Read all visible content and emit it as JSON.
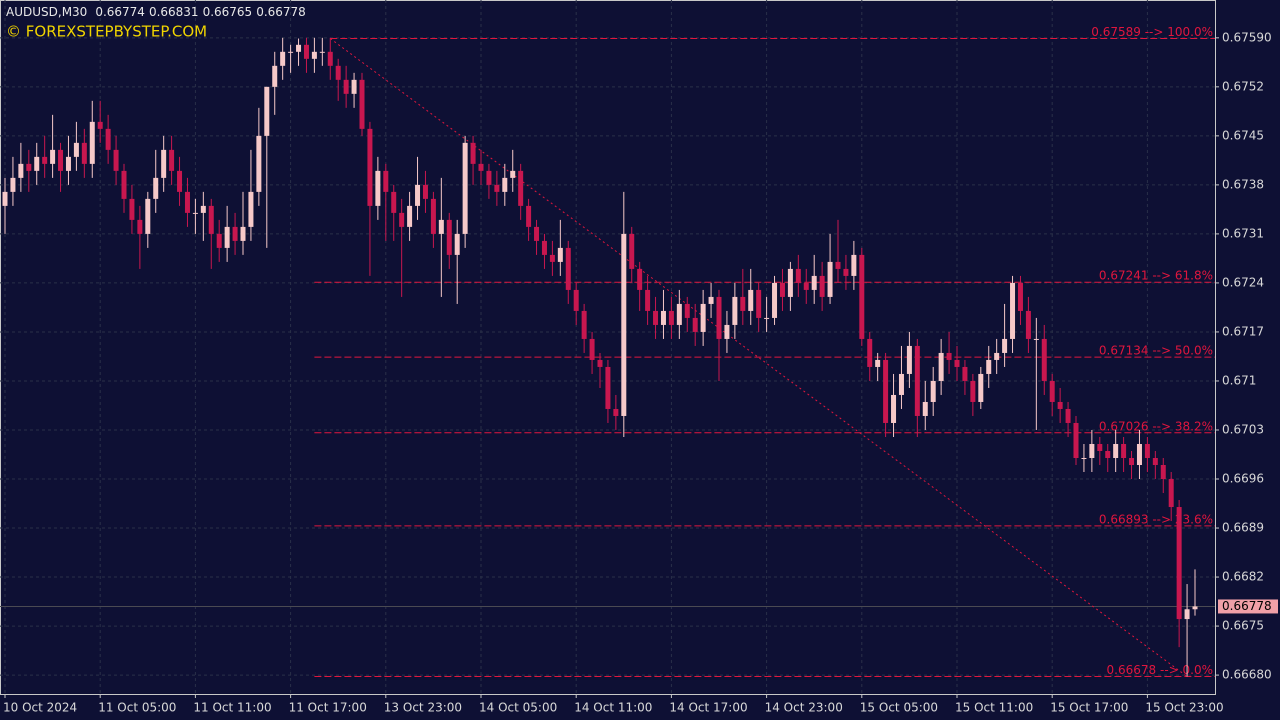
{
  "chart_data": {
    "type": "candlestick",
    "symbol": "AUDUSD,M30",
    "header_values": [
      0.66774,
      0.66831,
      0.66765,
      0.66778
    ],
    "watermark": "© FOREXSTEPBYSTEP.COM",
    "bid": 0.66778,
    "colors": {
      "up": "#f6c9c9",
      "down": "#c8174f",
      "fib": "#e0163e",
      "grid": "#2a3048",
      "background": "#0e1034"
    },
    "grid": true,
    "xlim": [
      0,
      150
    ],
    "ylim": [
      0.66653,
      0.67644
    ],
    "yticks": [
      {
        "value": 0.6759,
        "label": "0.67590"
      },
      0.6752,
      0.6745,
      0.6738,
      0.6731,
      0.6724,
      0.6717,
      0.671,
      0.6703,
      0.6696,
      0.6689,
      0.6682,
      0.6675,
      {
        "value": 0.6668,
        "label": "0.66680"
      }
    ],
    "xticks": [
      {
        "value": 0,
        "label": "10 Oct 2024"
      },
      {
        "value": 12,
        "label": "11 Oct 05:00"
      },
      {
        "value": 24,
        "label": "11 Oct 11:00"
      },
      {
        "value": 36,
        "label": "11 Oct 17:00"
      },
      {
        "value": 48,
        "label": "13 Oct 23:00"
      },
      {
        "value": 60,
        "label": "14 Oct 05:00"
      },
      {
        "value": 72,
        "label": "14 Oct 11:00"
      },
      {
        "value": 84,
        "label": "14 Oct 17:00"
      },
      {
        "value": 96,
        "label": "14 Oct 23:00"
      },
      {
        "value": 108,
        "label": "15 Oct 05:00"
      },
      {
        "value": 120,
        "label": "15 Oct 11:00"
      },
      {
        "value": 132,
        "label": "15 Oct 17:00"
      },
      {
        "value": 144,
        "label": "15 Oct 23:00"
      }
    ],
    "fib_levels": [
      {
        "value": 0.67589,
        "label": "0.67589 --> 100.0%"
      },
      {
        "value": 0.67241,
        "label": "0.67241 --> 61.8%"
      },
      {
        "value": 0.67134,
        "label": "0.67134 --> 50.0%"
      },
      {
        "value": 0.67026,
        "label": "0.67026 --> 38.2%"
      },
      {
        "value": 0.66893,
        "label": "0.66893 --> 23.6%"
      },
      {
        "value": 0.66678,
        "label": "0.66678 --> 0.0%"
      }
    ],
    "candles": [
      [
        0.6735,
        0.6739,
        0.6731,
        0.6737
      ],
      [
        0.6737,
        0.6742,
        0.6735,
        0.6739
      ],
      [
        0.6739,
        0.6744,
        0.6737,
        0.6741
      ],
      [
        0.6741,
        0.6743,
        0.6737,
        0.674
      ],
      [
        0.674,
        0.6744,
        0.6738,
        0.6742
      ],
      [
        0.6742,
        0.6745,
        0.6739,
        0.6741
      ],
      [
        0.6741,
        0.6748,
        0.6739,
        0.6743
      ],
      [
        0.6743,
        0.6744,
        0.6737,
        0.674
      ],
      [
        0.674,
        0.6745,
        0.6738,
        0.6742
      ],
      [
        0.6742,
        0.6747,
        0.674,
        0.6744
      ],
      [
        0.6744,
        0.6746,
        0.6739,
        0.6741
      ],
      [
        0.6741,
        0.675,
        0.6739,
        0.6747
      ],
      [
        0.6747,
        0.675,
        0.6744,
        0.6746
      ],
      [
        0.6746,
        0.6748,
        0.6741,
        0.6743
      ],
      [
        0.6743,
        0.6745,
        0.6738,
        0.674
      ],
      [
        0.674,
        0.6741,
        0.6734,
        0.6736
      ],
      [
        0.6736,
        0.6738,
        0.6731,
        0.6733
      ],
      [
        0.6733,
        0.6735,
        0.6726,
        0.6731
      ],
      [
        0.6731,
        0.6737,
        0.6729,
        0.6736
      ],
      [
        0.6736,
        0.6743,
        0.6734,
        0.6739
      ],
      [
        0.6739,
        0.6745,
        0.6737,
        0.6743
      ],
      [
        0.6743,
        0.6745,
        0.6738,
        0.674
      ],
      [
        0.674,
        0.6742,
        0.6735,
        0.6737
      ],
      [
        0.6737,
        0.6739,
        0.6732,
        0.6734
      ],
      [
        0.6734,
        0.6736,
        0.6731,
        0.6734
      ],
      [
        0.6734,
        0.6737,
        0.673,
        0.6735
      ],
      [
        0.6735,
        0.6736,
        0.6726,
        0.6731
      ],
      [
        0.6731,
        0.6733,
        0.6727,
        0.6729
      ],
      [
        0.6729,
        0.6735,
        0.6727,
        0.6732
      ],
      [
        0.6732,
        0.6734,
        0.6728,
        0.673
      ],
      [
        0.673,
        0.6737,
        0.6728,
        0.6732
      ],
      [
        0.6732,
        0.6743,
        0.673,
        0.6737
      ],
      [
        0.6737,
        0.6749,
        0.6735,
        0.6745
      ],
      [
        0.6745,
        0.6752,
        0.6729,
        0.6752
      ],
      [
        0.6752,
        0.6757,
        0.6748,
        0.6755
      ],
      [
        0.6755,
        0.6759,
        0.6753,
        0.6757
      ],
      [
        0.6757,
        0.6758,
        0.6754,
        0.6757
      ],
      [
        0.6757,
        0.67589,
        0.6755,
        0.6758
      ],
      [
        0.6758,
        0.6759,
        0.6754,
        0.6756
      ],
      [
        0.6756,
        0.6759,
        0.6754,
        0.6757
      ],
      [
        0.6757,
        0.6759,
        0.6755,
        0.6757
      ],
      [
        0.6757,
        0.6759,
        0.6753,
        0.6755
      ],
      [
        0.6755,
        0.6756,
        0.675,
        0.6753
      ],
      [
        0.6753,
        0.6755,
        0.6749,
        0.6751
      ],
      [
        0.6751,
        0.6754,
        0.6749,
        0.6753
      ],
      [
        0.6753,
        0.6754,
        0.6745,
        0.6746
      ],
      [
        0.6746,
        0.6747,
        0.6725,
        0.6735
      ],
      [
        0.6735,
        0.6742,
        0.6733,
        0.674
      ],
      [
        0.674,
        0.6741,
        0.673,
        0.6737
      ],
      [
        0.6737,
        0.6738,
        0.673,
        0.6734
      ],
      [
        0.6734,
        0.6736,
        0.6722,
        0.6732
      ],
      [
        0.6732,
        0.6737,
        0.673,
        0.6735
      ],
      [
        0.6735,
        0.6742,
        0.6733,
        0.6738
      ],
      [
        0.6738,
        0.674,
        0.6734,
        0.6736
      ],
      [
        0.6736,
        0.6737,
        0.6729,
        0.6731
      ],
      [
        0.6731,
        0.6739,
        0.6722,
        0.6733
      ],
      [
        0.6733,
        0.6734,
        0.6726,
        0.6728
      ],
      [
        0.6728,
        0.6733,
        0.6721,
        0.6731
      ],
      [
        0.6731,
        0.6745,
        0.6729,
        0.6744
      ],
      [
        0.6744,
        0.6745,
        0.6738,
        0.6741
      ],
      [
        0.6741,
        0.6743,
        0.6738,
        0.674
      ],
      [
        0.674,
        0.6741,
        0.6736,
        0.6738
      ],
      [
        0.6738,
        0.674,
        0.6735,
        0.6737
      ],
      [
        0.6737,
        0.6741,
        0.6735,
        0.6739
      ],
      [
        0.6739,
        0.6743,
        0.6737,
        0.674
      ],
      [
        0.674,
        0.6741,
        0.6733,
        0.6735
      ],
      [
        0.6735,
        0.6736,
        0.673,
        0.6732
      ],
      [
        0.6732,
        0.6733,
        0.6728,
        0.673
      ],
      [
        0.673,
        0.6731,
        0.6726,
        0.6728
      ],
      [
        0.6728,
        0.673,
        0.6725,
        0.6727
      ],
      [
        0.6727,
        0.6733,
        0.6725,
        0.6729
      ],
      [
        0.6729,
        0.673,
        0.6721,
        0.6723
      ],
      [
        0.6723,
        0.6724,
        0.6718,
        0.672
      ],
      [
        0.672,
        0.6721,
        0.6714,
        0.6716
      ],
      [
        0.6716,
        0.6717,
        0.6711,
        0.6713
      ],
      [
        0.6713,
        0.6714,
        0.6709,
        0.6712
      ],
      [
        0.6712,
        0.6713,
        0.6704,
        0.6706
      ],
      [
        0.6706,
        0.6708,
        0.6703,
        0.6705
      ],
      [
        0.6705,
        0.6737,
        0.6702,
        0.6731
      ],
      [
        0.6731,
        0.6732,
        0.6724,
        0.6726
      ],
      [
        0.6726,
        0.6727,
        0.672,
        0.6723
      ],
      [
        0.6723,
        0.6725,
        0.6718,
        0.672
      ],
      [
        0.672,
        0.6722,
        0.6716,
        0.6718
      ],
      [
        0.6718,
        0.6723,
        0.6716,
        0.672
      ],
      [
        0.672,
        0.6722,
        0.6716,
        0.6718
      ],
      [
        0.6718,
        0.6723,
        0.6716,
        0.6721
      ],
      [
        0.6721,
        0.6722,
        0.6717,
        0.6719
      ],
      [
        0.6719,
        0.6721,
        0.6715,
        0.6717
      ],
      [
        0.6717,
        0.6723,
        0.6715,
        0.6721
      ],
      [
        0.6721,
        0.6724,
        0.6719,
        0.6722
      ],
      [
        0.6722,
        0.6723,
        0.671,
        0.6716
      ],
      [
        0.6716,
        0.672,
        0.6714,
        0.6718
      ],
      [
        0.6718,
        0.6724,
        0.6716,
        0.6722
      ],
      [
        0.6722,
        0.6726,
        0.6718,
        0.672
      ],
      [
        0.672,
        0.6726,
        0.6718,
        0.6723
      ],
      [
        0.6723,
        0.6724,
        0.6717,
        0.6719
      ],
      [
        0.6719,
        0.6722,
        0.6717,
        0.6719
      ],
      [
        0.6719,
        0.6725,
        0.6718,
        0.6724
      ],
      [
        0.6724,
        0.6726,
        0.672,
        0.6722
      ],
      [
        0.6722,
        0.6727,
        0.672,
        0.6726
      ],
      [
        0.6726,
        0.6728,
        0.6722,
        0.6724
      ],
      [
        0.6724,
        0.6726,
        0.6721,
        0.6723
      ],
      [
        0.6723,
        0.6728,
        0.6721,
        0.6725
      ],
      [
        0.6725,
        0.6727,
        0.672,
        0.6722
      ],
      [
        0.6722,
        0.6731,
        0.6721,
        0.6727
      ],
      [
        0.6727,
        0.6733,
        0.6724,
        0.6726
      ],
      [
        0.6726,
        0.6728,
        0.6723,
        0.6725
      ],
      [
        0.6725,
        0.673,
        0.6723,
        0.6728
      ],
      [
        0.6728,
        0.6729,
        0.6715,
        0.6716
      ],
      [
        0.6716,
        0.6717,
        0.671,
        0.6712
      ],
      [
        0.6712,
        0.6714,
        0.671,
        0.6713
      ],
      [
        0.6713,
        0.6714,
        0.6702,
        0.6704
      ],
      [
        0.6704,
        0.6711,
        0.6702,
        0.6708
      ],
      [
        0.6708,
        0.6715,
        0.6706,
        0.6711
      ],
      [
        0.6711,
        0.6717,
        0.6709,
        0.6715
      ],
      [
        0.6715,
        0.6716,
        0.6702,
        0.6705
      ],
      [
        0.6705,
        0.671,
        0.6703,
        0.6707
      ],
      [
        0.6707,
        0.6712,
        0.6705,
        0.671
      ],
      [
        0.671,
        0.6716,
        0.6708,
        0.6714
      ],
      [
        0.6714,
        0.6717,
        0.6711,
        0.6713
      ],
      [
        0.6713,
        0.6715,
        0.671,
        0.6712
      ],
      [
        0.6712,
        0.6713,
        0.6708,
        0.671
      ],
      [
        0.671,
        0.6711,
        0.6705,
        0.6707
      ],
      [
        0.6707,
        0.6712,
        0.6706,
        0.6711
      ],
      [
        0.6711,
        0.6715,
        0.6709,
        0.6713
      ],
      [
        0.6713,
        0.6716,
        0.6711,
        0.6714
      ],
      [
        0.6714,
        0.6721,
        0.6712,
        0.6716
      ],
      [
        0.6716,
        0.6725,
        0.6714,
        0.6724
      ],
      [
        0.6724,
        0.6725,
        0.6718,
        0.672
      ],
      [
        0.672,
        0.6722,
        0.6714,
        0.6716
      ],
      [
        0.6716,
        0.6719,
        0.6703,
        0.6716
      ],
      [
        0.6716,
        0.6718,
        0.6708,
        0.671
      ],
      [
        0.671,
        0.6711,
        0.6705,
        0.6707
      ],
      [
        0.6707,
        0.6709,
        0.6704,
        0.6706
      ],
      [
        0.6706,
        0.6707,
        0.6702,
        0.6704
      ],
      [
        0.6704,
        0.6705,
        0.6698,
        0.6699
      ],
      [
        0.6699,
        0.6701,
        0.6697,
        0.6699
      ],
      [
        0.6699,
        0.6703,
        0.6697,
        0.6701
      ],
      [
        0.6701,
        0.6702,
        0.6698,
        0.67
      ],
      [
        0.67,
        0.6701,
        0.6697,
        0.6699
      ],
      [
        0.6699,
        0.6703,
        0.6697,
        0.6701
      ],
      [
        0.6701,
        0.6702,
        0.6697,
        0.6699
      ],
      [
        0.6699,
        0.67,
        0.6696,
        0.6698
      ],
      [
        0.6698,
        0.6703,
        0.6696,
        0.6701
      ],
      [
        0.6701,
        0.6702,
        0.6697,
        0.6699
      ],
      [
        0.6699,
        0.67,
        0.6696,
        0.6698
      ],
      [
        0.6698,
        0.6699,
        0.6694,
        0.6696
      ],
      [
        0.6696,
        0.6697,
        0.669,
        0.6692
      ],
      [
        0.6692,
        0.6693,
        0.6672,
        0.6676
      ],
      [
        0.6676,
        0.6681,
        0.66678,
        0.66774
      ],
      [
        0.66774,
        0.66831,
        0.66765,
        0.66778
      ]
    ]
  }
}
